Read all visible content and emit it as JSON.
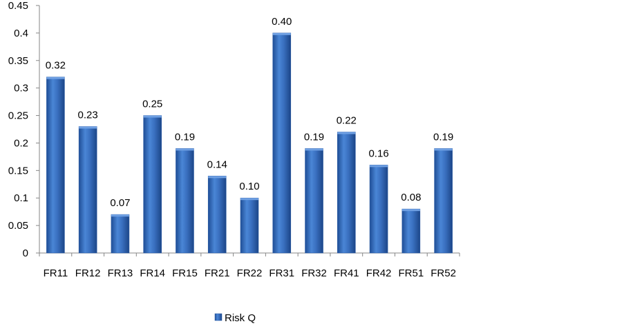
{
  "chart_data": {
    "type": "bar",
    "categories": [
      "FR11",
      "FR12",
      "FR13",
      "FR14",
      "FR15",
      "FR21",
      "FR22",
      "FR31",
      "FR32",
      "FR41",
      "FR42",
      "FR51",
      "FR52"
    ],
    "series": [
      {
        "name": "Risk Q",
        "values": [
          0.32,
          0.23,
          0.07,
          0.25,
          0.19,
          0.14,
          0.1,
          0.4,
          0.19,
          0.22,
          0.16,
          0.08,
          0.19
        ],
        "labels": [
          "0.32",
          "0.23",
          "0.07",
          "0.25",
          "0.19",
          "0.14",
          "0.10",
          "0.40",
          "0.19",
          "0.22",
          "0.16",
          "0.08",
          "0.19"
        ],
        "color": "#3E72C3"
      }
    ],
    "ylim": [
      0,
      0.45
    ],
    "yticks": [
      0,
      0.05,
      0.1,
      0.15,
      0.2,
      0.25,
      0.3,
      0.35,
      0.4,
      0.45
    ],
    "ytick_labels": [
      "0",
      "0.05",
      "0.1",
      "0.15",
      "0.2",
      "0.25",
      "0.3",
      "0.35",
      "0.4",
      "0.45"
    ],
    "grid": false,
    "legend_position": "bottom"
  }
}
